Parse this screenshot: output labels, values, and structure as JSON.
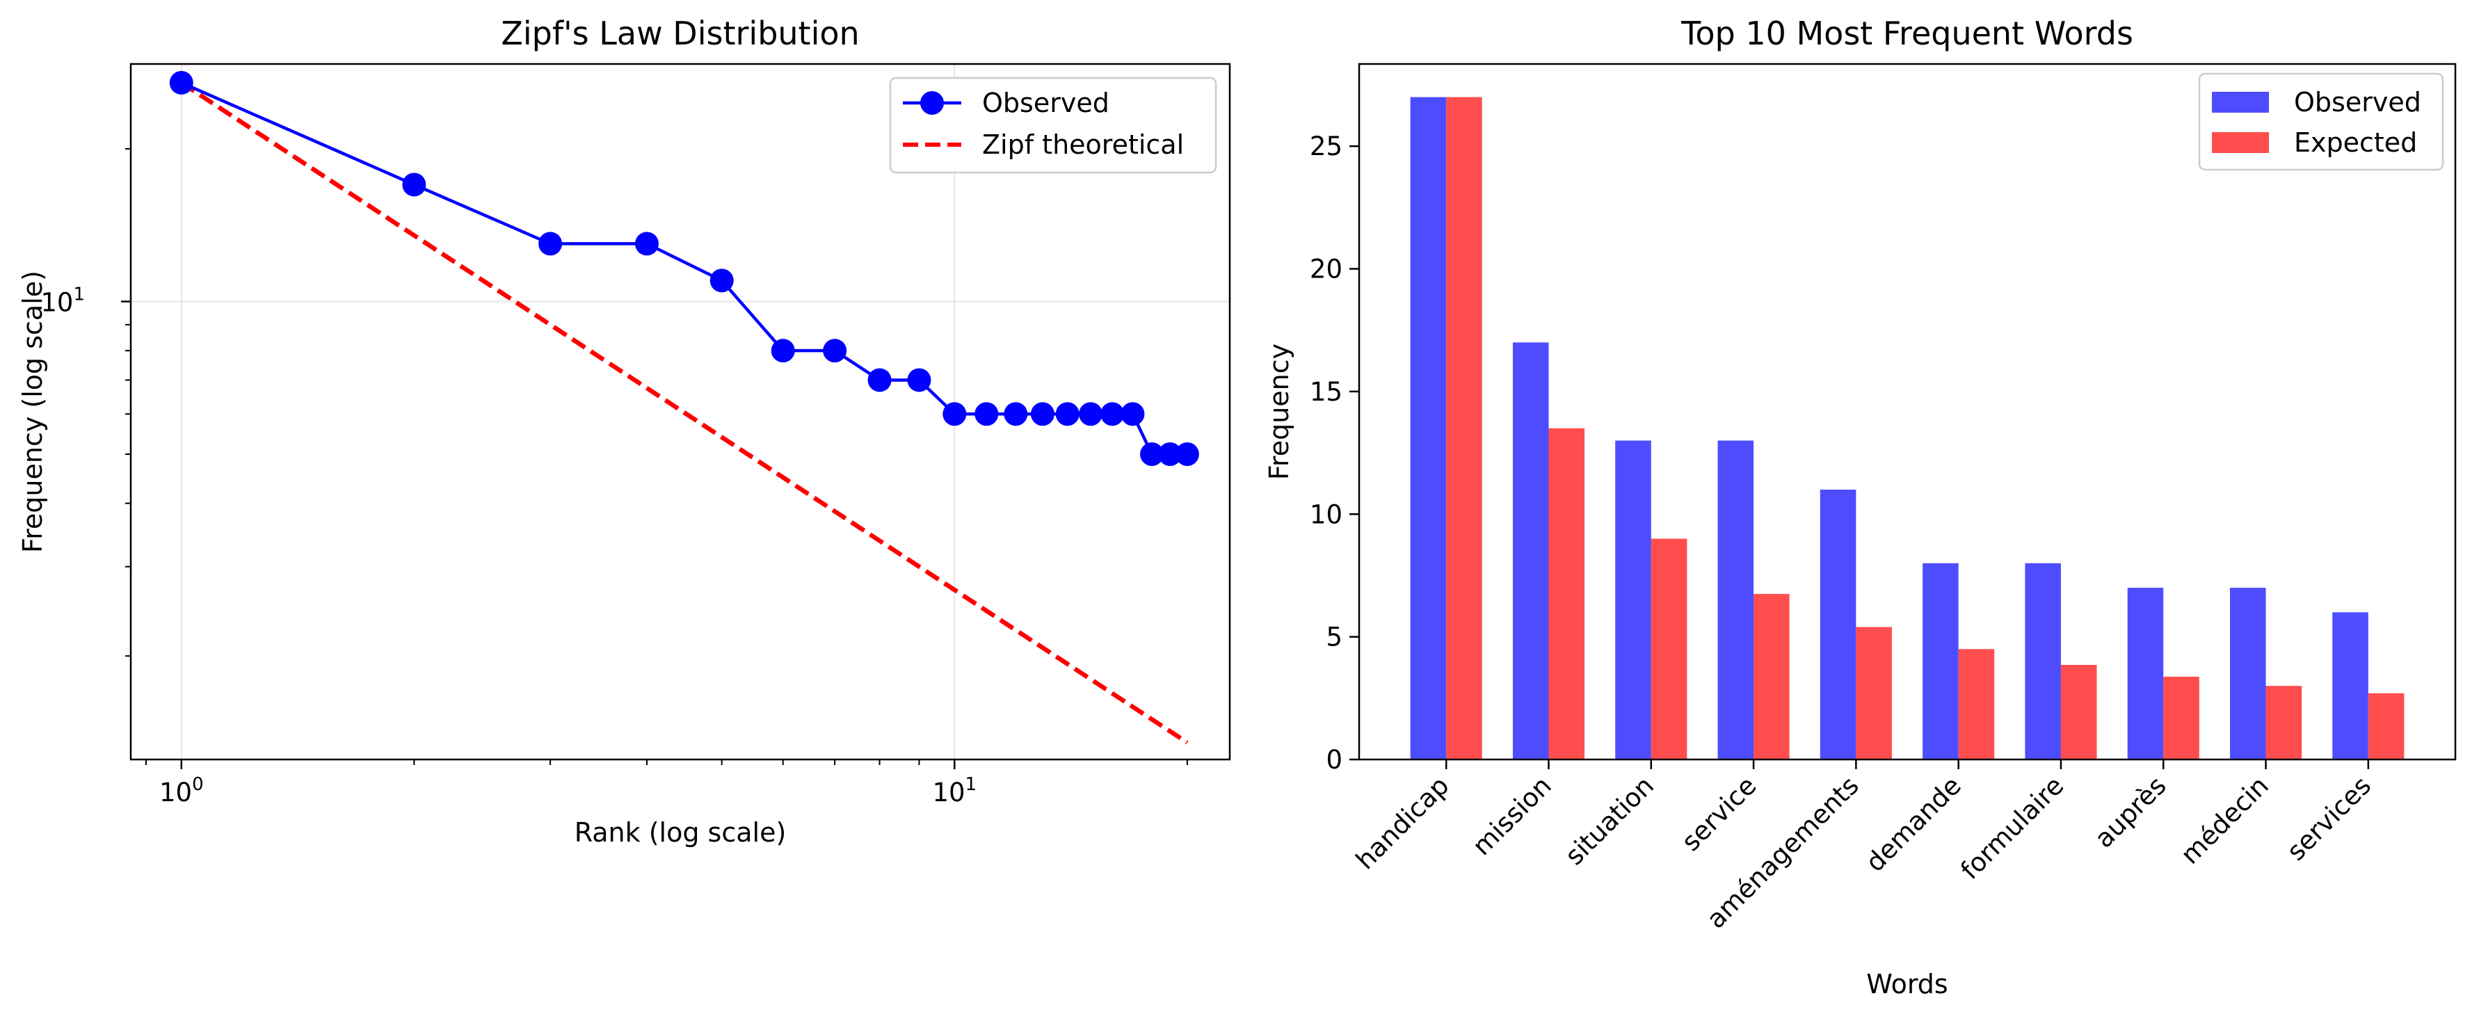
{
  "chart_data": [
    {
      "type": "line",
      "title": "Zipf's Law Distribution",
      "xlabel": "Rank (log scale)",
      "ylabel": "Frequency (log scale)",
      "xscale": "log",
      "yscale": "log",
      "xlim": [
        0.86,
        22.7
      ],
      "ylim": [
        1.25,
        29.4
      ],
      "grid": true,
      "legend_position": "top-right",
      "x_ticks": [
        {
          "value": 1,
          "base": "10",
          "exp": "0"
        },
        {
          "value": 10,
          "base": "10",
          "exp": "1"
        }
      ],
      "y_ticks": [
        {
          "value": 10,
          "base": "10",
          "exp": "1"
        }
      ],
      "series": [
        {
          "name": "Observed",
          "style": "line-marker",
          "color": "#0000ff",
          "x": [
            1,
            2,
            3,
            4,
            5,
            6,
            7,
            8,
            9,
            10,
            11,
            12,
            13,
            14,
            15,
            16,
            17,
            18,
            19,
            20
          ],
          "y": [
            27,
            17,
            13,
            13,
            11,
            8,
            8,
            7,
            7,
            6,
            6,
            6,
            6,
            6,
            6,
            6,
            6,
            5,
            5,
            5
          ]
        },
        {
          "name": "Zipf theoretical",
          "style": "dashed",
          "color": "#ff0000",
          "x": [
            1,
            2,
            3,
            4,
            5,
            6,
            7,
            8,
            9,
            10,
            11,
            12,
            13,
            14,
            15,
            16,
            17,
            18,
            19,
            20
          ],
          "y": [
            27,
            13.5,
            9,
            6.75,
            5.4,
            4.5,
            3.857,
            3.375,
            3,
            2.7,
            2.455,
            2.25,
            2.077,
            1.929,
            1.8,
            1.6875,
            1.588,
            1.5,
            1.421,
            1.35
          ]
        }
      ]
    },
    {
      "type": "bar",
      "title": "Top 10 Most Frequent Words",
      "xlabel": "Words",
      "ylabel": "Frequency",
      "ylim": [
        0,
        28.35
      ],
      "y_ticks": [
        0,
        5,
        10,
        15,
        20,
        25
      ],
      "grid": false,
      "legend_position": "top-right",
      "categories": [
        "handicap",
        "mission",
        "situation",
        "service",
        "aménagements",
        "demande",
        "formulaire",
        "auprès",
        "médecin",
        "services"
      ],
      "series": [
        {
          "name": "Observed",
          "color": "#4d4dff",
          "values": [
            27,
            17,
            13,
            13,
            11,
            8,
            8,
            7,
            7,
            6
          ]
        },
        {
          "name": "Expected",
          "color": "#ff4d4d",
          "values": [
            27,
            13.5,
            9,
            6.75,
            5.4,
            4.5,
            3.857,
            3.375,
            3,
            2.7
          ]
        }
      ]
    }
  ]
}
